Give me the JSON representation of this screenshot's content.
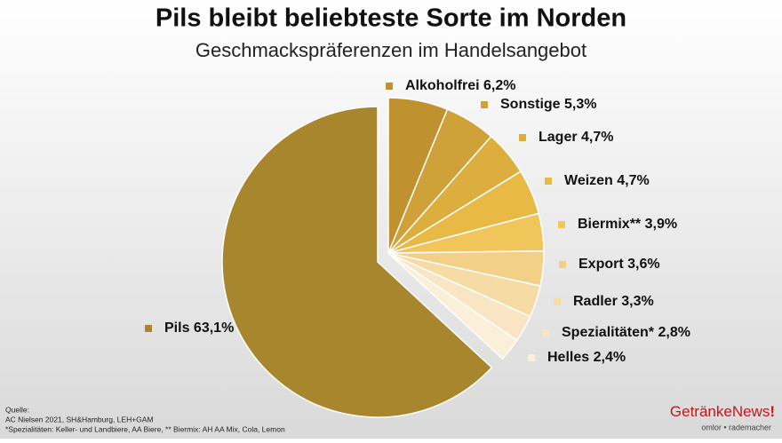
{
  "chart_data": {
    "type": "pie",
    "title": "Pils bleibt beliebteste Sorte im Norden",
    "subtitle": "Geschmackspräferenzen im Handelsangebot",
    "categories": [
      "Alkoholfrei",
      "Sonstige",
      "Lager",
      "Weizen",
      "Biermix**",
      "Export",
      "Radler",
      "Spezialitäten*",
      "Helles",
      "Pils"
    ],
    "values": [
      6.2,
      5.3,
      4.7,
      4.7,
      3.9,
      3.6,
      3.3,
      2.8,
      2.4,
      63.1
    ],
    "value_labels": [
      "6,2%",
      "5,3%",
      "4,7%",
      "4,7%",
      "3,9%",
      "3,6%",
      "3,3%",
      "2,8%",
      "2,4%",
      "63,1%"
    ],
    "colors": [
      "#bf922f",
      "#cfa139",
      "#dcae3e",
      "#e8ba45",
      "#f0c55a",
      "#f3d088",
      "#f6dba5",
      "#f9e5c4",
      "#fcefd9",
      "#a8862d"
    ]
  },
  "notes": [
    "Quelle:",
    "AC Nielsen 2021, SH&Hamburg, LEH+GAM",
    "*Spezialitäten: Keller- und Landbiere, AA Biere, ** Biermix: AH AA Mix, Cola, Lemon"
  ],
  "logo": {
    "brand": "GetränkeNews",
    "mark": "!",
    "tagline": "omlor • rademacher"
  }
}
